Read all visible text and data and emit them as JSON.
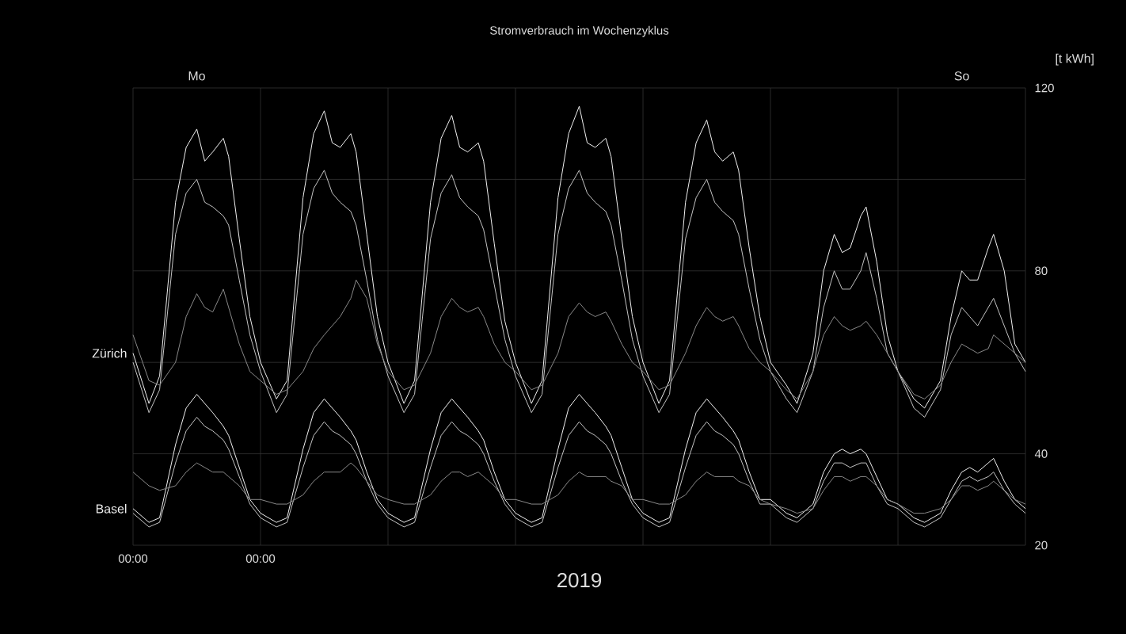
{
  "chart_data": {
    "type": "line",
    "title": "Stromverbrauch im Wochenzyklus",
    "xlabel": "2019",
    "ylabel": "[t kWh]",
    "x": [
      0,
      3,
      5,
      8,
      10,
      12,
      13.5,
      15,
      17,
      18,
      20,
      22,
      24,
      27,
      29,
      32,
      34,
      36,
      37.5,
      39,
      41,
      42,
      44,
      46,
      48,
      51,
      53,
      56,
      58,
      60,
      61.5,
      63,
      65,
      66,
      68,
      70,
      72,
      75,
      77,
      80,
      82,
      84,
      85.5,
      87,
      89,
      90,
      92,
      94,
      96,
      99,
      101,
      104,
      106,
      108,
      109.5,
      111,
      113,
      114,
      116,
      118,
      120,
      123,
      125,
      128,
      130,
      132,
      133.5,
      135,
      137,
      138,
      140,
      142,
      144,
      147,
      149,
      152,
      154,
      156,
      157.5,
      159,
      161,
      162,
      164,
      166,
      168
    ],
    "xlim": [
      0,
      168
    ],
    "xticks": [
      {
        "value": 0,
        "label": "00:00"
      },
      {
        "value": 24,
        "label": "00:00"
      },
      {
        "value": 48,
        "label": null
      },
      {
        "value": 72,
        "label": null
      },
      {
        "value": 96,
        "label": null
      },
      {
        "value": 120,
        "label": null
      },
      {
        "value": 144,
        "label": null
      },
      {
        "value": 168,
        "label": null
      }
    ],
    "annotations": [
      "Mo",
      "So"
    ],
    "ylim": [
      20,
      120
    ],
    "yticks": [
      20,
      40,
      {
        "value": 60,
        "label": null
      },
      80,
      {
        "value": 100,
        "label": null
      },
      120
    ],
    "grid": true,
    "series": [
      {
        "name": "Zürich",
        "color": "#f0f0f0",
        "values": [
          62,
          51,
          57,
          95,
          107,
          111,
          104,
          106,
          109,
          105,
          87,
          70,
          60,
          52,
          56,
          96,
          110,
          115,
          108,
          107,
          110,
          106,
          88,
          70,
          60,
          51,
          56,
          95,
          109,
          114,
          107,
          106,
          108,
          104,
          86,
          69,
          60,
          51,
          56,
          96,
          110,
          116,
          108,
          107,
          109,
          105,
          87,
          70,
          60,
          51,
          56,
          95,
          108,
          113,
          106,
          104,
          106,
          102,
          85,
          70,
          60,
          55,
          51,
          62,
          80,
          88,
          84,
          85,
          92,
          94,
          82,
          66,
          58,
          52,
          50,
          56,
          70,
          80,
          78,
          78,
          85,
          88,
          80,
          64,
          60
        ]
      },
      {
        "color": "#c4c4c4",
        "values": [
          60,
          49,
          54,
          88,
          97,
          100,
          95,
          94,
          92,
          90,
          78,
          66,
          58,
          49,
          53,
          88,
          98,
          102,
          97,
          95,
          93,
          90,
          78,
          65,
          57,
          49,
          53,
          87,
          97,
          101,
          96,
          94,
          92,
          89,
          77,
          65,
          57,
          49,
          53,
          88,
          98,
          102,
          97,
          95,
          93,
          90,
          78,
          65,
          57,
          49,
          53,
          87,
          96,
          100,
          95,
          93,
          91,
          88,
          76,
          65,
          58,
          52,
          49,
          58,
          72,
          80,
          76,
          76,
          80,
          84,
          74,
          62,
          58,
          50,
          48,
          54,
          66,
          72,
          70,
          68,
          72,
          74,
          68,
          62,
          58
        ]
      },
      {
        "color": "#8a8a8a",
        "values": [
          66,
          56,
          55,
          60,
          70,
          75,
          72,
          71,
          76,
          72,
          64,
          58,
          56,
          53,
          54,
          58,
          63,
          66,
          68,
          70,
          74,
          78,
          74,
          64,
          58,
          54,
          55,
          62,
          70,
          74,
          72,
          71,
          72,
          70,
          64,
          60,
          58,
          54,
          55,
          62,
          70,
          73,
          71,
          70,
          71,
          69,
          64,
          60,
          58,
          54,
          55,
          62,
          68,
          72,
          70,
          69,
          70,
          68,
          63,
          60,
          58,
          54,
          52,
          58,
          66,
          70,
          68,
          67,
          68,
          69,
          66,
          62,
          58,
          53,
          52,
          55,
          60,
          64,
          63,
          62,
          63,
          66,
          64,
          62,
          60
        ]
      },
      {
        "name": "Basel",
        "color": "#f0f0f0",
        "values": [
          28,
          25,
          26,
          42,
          50,
          53,
          51,
          49,
          46,
          44,
          37,
          30,
          27,
          25,
          26,
          41,
          49,
          52,
          50,
          48,
          45,
          43,
          36,
          30,
          27,
          25,
          26,
          41,
          49,
          52,
          50,
          48,
          45,
          43,
          36,
          30,
          27,
          25,
          26,
          41,
          50,
          53,
          51,
          49,
          46,
          44,
          37,
          30,
          27,
          25,
          26,
          41,
          49,
          52,
          50,
          48,
          45,
          43,
          36,
          30,
          30,
          27,
          26,
          29,
          36,
          40,
          41,
          40,
          41,
          40,
          35,
          30,
          29,
          26,
          25,
          27,
          32,
          36,
          37,
          36,
          38,
          39,
          34,
          30,
          28
        ]
      },
      {
        "color": "#c4c4c4",
        "values": [
          27,
          24,
          25,
          38,
          45,
          48,
          46,
          45,
          43,
          41,
          35,
          29,
          26,
          24,
          25,
          37,
          44,
          47,
          45,
          44,
          42,
          40,
          34,
          29,
          26,
          24,
          25,
          37,
          44,
          47,
          45,
          44,
          42,
          40,
          34,
          29,
          26,
          24,
          25,
          37,
          44,
          47,
          45,
          44,
          42,
          40,
          34,
          29,
          26,
          24,
          25,
          37,
          44,
          47,
          45,
          44,
          42,
          40,
          34,
          29,
          29,
          26,
          25,
          28,
          34,
          38,
          38,
          37,
          38,
          38,
          33,
          29,
          28,
          25,
          24,
          26,
          30,
          34,
          35,
          34,
          35,
          36,
          32,
          29,
          27
        ]
      },
      {
        "color": "#8a8a8a",
        "values": [
          36,
          33,
          32,
          33,
          36,
          38,
          37,
          36,
          36,
          35,
          33,
          30,
          30,
          29,
          29,
          31,
          34,
          36,
          36,
          36,
          38,
          37,
          34,
          31,
          30,
          29,
          29,
          31,
          34,
          36,
          36,
          35,
          36,
          35,
          33,
          30,
          30,
          29,
          29,
          31,
          34,
          36,
          35,
          35,
          35,
          34,
          33,
          30,
          30,
          29,
          29,
          31,
          34,
          36,
          35,
          35,
          35,
          34,
          33,
          30,
          29,
          28,
          27,
          28,
          32,
          35,
          35,
          34,
          35,
          35,
          33,
          30,
          29,
          27,
          27,
          28,
          30,
          33,
          33,
          32,
          33,
          34,
          32,
          30,
          29
        ]
      }
    ]
  }
}
